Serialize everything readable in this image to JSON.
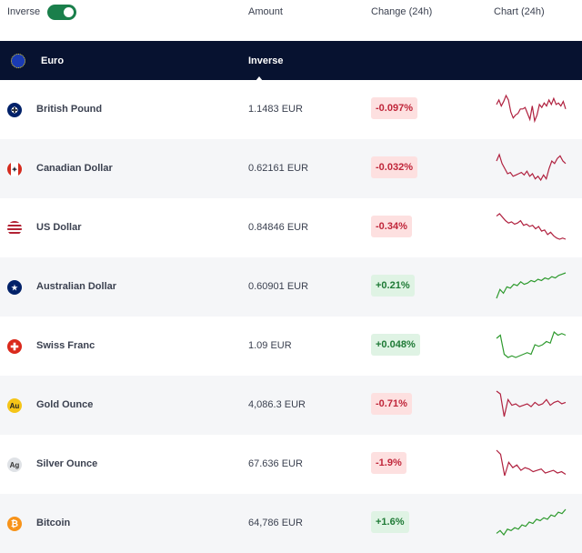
{
  "top": {
    "inverse_label": "Inverse",
    "inverse_on": true,
    "col_amount": "Amount",
    "col_change": "Change (24h)",
    "col_chart": "Chart (24h)"
  },
  "base": {
    "name": "Euro",
    "mode": "Inverse",
    "icon": "eu-flag-icon"
  },
  "colors": {
    "neg": "#b0213f",
    "pos": "#2e9a2e"
  },
  "rows": [
    {
      "icon": "uk-flag-icon",
      "name": "British Pound",
      "amount": "1.1483 EUR",
      "change": "-0.097%",
      "dir": "neg",
      "spark": [
        9,
        6,
        10,
        7,
        3,
        6,
        14,
        18,
        16,
        15,
        12,
        12,
        11,
        15,
        19,
        10,
        20,
        16,
        9,
        11,
        8,
        10,
        6,
        9,
        5,
        9,
        8,
        10,
        7,
        12
      ]
    },
    {
      "icon": "canada-flag-icon",
      "name": "Canadian Dollar",
      "amount": "0.62161 EUR",
      "change": "-0.032%",
      "dir": "neg",
      "spark": [
        8,
        3,
        10,
        14,
        18,
        17,
        20,
        19,
        18,
        17,
        19,
        16,
        20,
        18,
        22,
        20,
        23,
        19,
        22,
        14,
        8,
        10,
        6,
        4,
        8,
        10
      ]
    },
    {
      "icon": "us-flag-icon",
      "name": "US Dollar",
      "amount": "0.84846 EUR",
      "change": "-0.34%",
      "dir": "neg",
      "spark": [
        5,
        3,
        6,
        9,
        11,
        10,
        12,
        11,
        9,
        13,
        12,
        14,
        13,
        16,
        14,
        18,
        17,
        21,
        19,
        22,
        24,
        25,
        24,
        25
      ]
    },
    {
      "icon": "australia-flag-icon",
      "name": "Australian Dollar",
      "amount": "0.60901 EUR",
      "change": "+0.21%",
      "dir": "pos",
      "spark": [
        25,
        18,
        21,
        16,
        17,
        14,
        15,
        12,
        14,
        13,
        11,
        12,
        10,
        11,
        9,
        10,
        8,
        9,
        7,
        6,
        5
      ]
    },
    {
      "icon": "swiss-flag-icon",
      "name": "Swiss Franc",
      "amount": "1.09 EUR",
      "change": "+0.048%",
      "dir": "pos",
      "spark": [
        10,
        8,
        20,
        22,
        21,
        22,
        21,
        20,
        19,
        20,
        14,
        15,
        14,
        12,
        13,
        6,
        8,
        7,
        8
      ]
    },
    {
      "icon": "gold-icon",
      "name": "Gold Ounce",
      "amount": "4,086.3 EUR",
      "change": "-0.71%",
      "dir": "neg",
      "spark": [
        4,
        6,
        22,
        10,
        14,
        13,
        15,
        14,
        13,
        15,
        12,
        14,
        13,
        10,
        14,
        12,
        11,
        13,
        12
      ]
    },
    {
      "icon": "silver-icon",
      "name": "Silver Ounce",
      "amount": "67.636 EUR",
      "change": "-1.9%",
      "dir": "neg",
      "spark": [
        3,
        6,
        22,
        12,
        16,
        14,
        18,
        16,
        17,
        19,
        18,
        17,
        20,
        19,
        18,
        20,
        19,
        21
      ]
    },
    {
      "icon": "bitcoin-icon",
      "name": "Bitcoin",
      "amount": "64,786 EUR",
      "change": "+1.6%",
      "dir": "pos",
      "spark": [
        20,
        18,
        21,
        17,
        18,
        16,
        17,
        14,
        15,
        12,
        13,
        10,
        11,
        9,
        10,
        7,
        8,
        5,
        6,
        3
      ]
    }
  ]
}
